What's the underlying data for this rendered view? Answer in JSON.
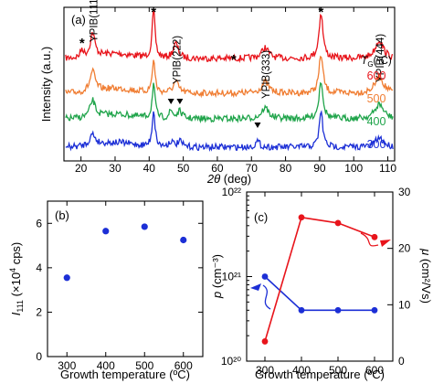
{
  "chart_data": [
    {
      "panel": "(a)",
      "type": "line",
      "xlabel": "2θ (deg)",
      "ylabel": "Intensity (a.u.)",
      "xlim": [
        15,
        112
      ],
      "x_ticks": [
        "20",
        "30",
        "40",
        "50",
        "60",
        "70",
        "80",
        "90",
        "100",
        "110"
      ],
      "legend_title": "T",
      "legend_subscript": "G",
      "legend_unit": "(ºC)",
      "series": [
        {
          "name": "600",
          "color": "#e8141b"
        },
        {
          "name": "500",
          "color": "#f07d32"
        },
        {
          "name": "400",
          "color": "#1fa44a"
        },
        {
          "name": "300",
          "color": "#1c2fd6"
        }
      ],
      "peaks": [
        {
          "x": 23.4,
          "label": "YPIB(111)"
        },
        {
          "x": 47.8,
          "label": "YPIB(222)"
        },
        {
          "x": 73.9,
          "label": "YPIB(333)"
        },
        {
          "x": 107.5,
          "label": "YPIB(444)"
        }
      ],
      "star_markers": [
        20.3,
        41.3,
        64.8,
        90.4
      ],
      "triangle_markers": [
        46.4,
        49.0,
        71.8
      ],
      "substrate_peaks": [
        41.3,
        90.4
      ]
    },
    {
      "panel": "(b)",
      "type": "scatter",
      "xlabel": "Growth temperature (ºC)",
      "ylabel_main": "I",
      "ylabel_sub": "111",
      "ylabel_rest": " (×10",
      "ylabel_sup": "4",
      "ylabel_end": " cps)",
      "xlim": [
        250,
        650
      ],
      "ylim": [
        0,
        7
      ],
      "x_ticks": [
        300,
        400,
        500,
        600
      ],
      "y_ticks": [
        0,
        2,
        4,
        6
      ],
      "color": "#1c2fd6",
      "x": [
        300,
        400,
        500,
        600
      ],
      "y": [
        3.55,
        5.65,
        5.85,
        5.25
      ]
    },
    {
      "panel": "(c)",
      "type": "line",
      "xlabel": "Growth temperature (ºC)",
      "ylabel_left": "p (cm⁻³)",
      "ylabel_right": "μ (cm²/Vs)",
      "xlim": [
        250,
        650
      ],
      "x_ticks": [
        300,
        400,
        500,
        600
      ],
      "left_axis": {
        "scale": "log",
        "ylim": [
          1e+20,
          1e+22
        ],
        "tick_labels": [
          "10²⁰",
          "10²¹",
          "10²²"
        ]
      },
      "right_axis": {
        "scale": "linear",
        "ylim": [
          0,
          30
        ],
        "tick_labels": [
          "0",
          "10",
          "20",
          "30"
        ]
      },
      "series": [
        {
          "axis": "left",
          "color": "#1c2fd6",
          "x": [
            300,
            400,
            500,
            600
          ],
          "y": [
            1e+21,
            4e+20,
            4e+20,
            4e+20
          ]
        },
        {
          "axis": "right",
          "color": "#e8141b",
          "x": [
            300,
            400,
            500,
            600
          ],
          "y": [
            3.5,
            25.5,
            24.5,
            22.0
          ]
        }
      ]
    }
  ]
}
